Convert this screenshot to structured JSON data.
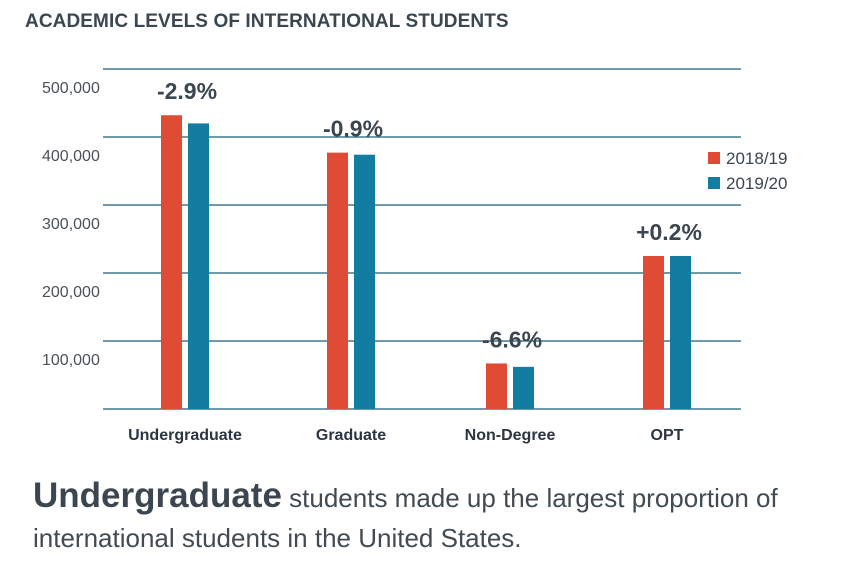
{
  "chart_data": {
    "type": "bar",
    "title": "ACADEMIC LEVELS OF INTERNATIONAL STUDENTS",
    "categories": [
      "Undergraduate",
      "Graduate",
      "Non-Degree",
      "OPT"
    ],
    "series": [
      {
        "name": "2018/19",
        "color": "#e04b35",
        "values": [
          432000,
          377000,
          67000,
          225000
        ]
      },
      {
        "name": "2019/20",
        "color": "#127da0",
        "values": [
          420000,
          374000,
          62000,
          225000
        ]
      }
    ],
    "change_labels": [
      "-2.9%",
      "-0.9%",
      "-6.6%",
      "+0.2%"
    ],
    "y_ticks": [
      100000,
      200000,
      300000,
      400000,
      500000
    ],
    "y_tick_labels": [
      "100,000",
      "200,000",
      "300,000",
      "400,000",
      "500,000"
    ],
    "ylim": [
      0,
      500000
    ],
    "grid": true,
    "grid_color": "#1b5d78",
    "legend_position": "right",
    "xlabel": "",
    "ylabel": ""
  },
  "caption": {
    "lead": "Undergraduate",
    "rest": " students made up the largest proportion of international students in the United States."
  }
}
